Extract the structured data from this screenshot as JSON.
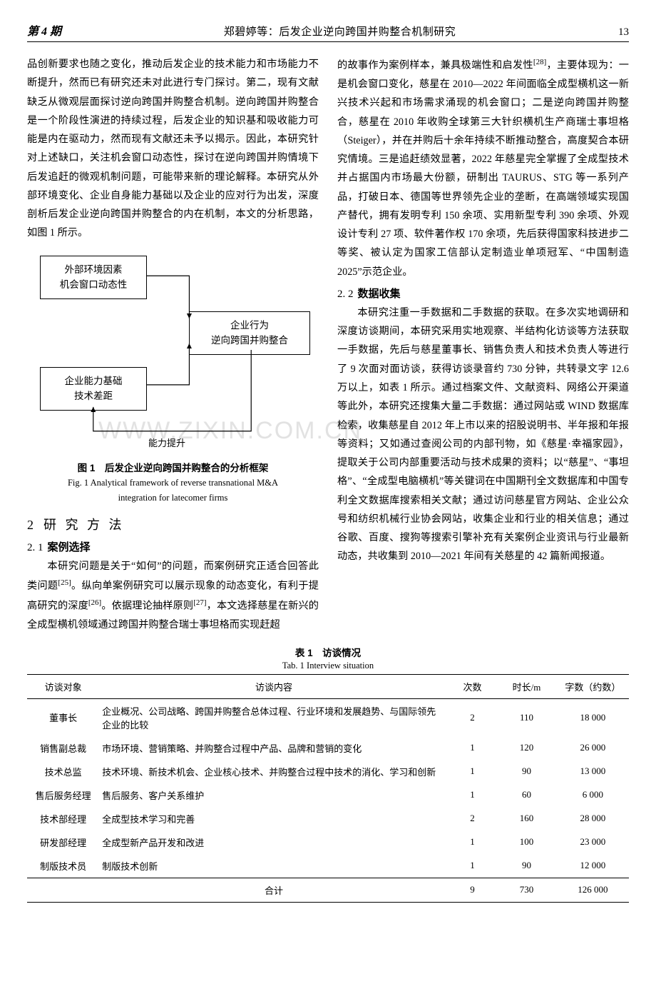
{
  "header": {
    "issue": "第 4 期",
    "center": "郑碧婷等：后发企业逆向跨国并购整合机制研究",
    "page": "13"
  },
  "colLeft": {
    "p1": "品创新要求也随之变化，推动后发企业的技术能力和市场能力不断提升，然而已有研究还未对此进行专门探讨。第二，现有文献缺乏从微观层面探讨逆向跨国并购整合机制。逆向跨国并购整合是一个阶段性演进的持续过程，后发企业的知识基和吸收能力可能是内在驱动力，然而现有文献还未予以揭示。因此，本研究针对上述缺口，关注机会窗口动态性，探讨在逆向跨国并购情境下后发追赶的微观机制问题，可能带来新的理论解释。本研究从外部环境变化、企业自身能力基础以及企业的应对行为出发，深度剖析后发企业逆向跨国并购整合的内在机制，本文的分析思路，如图 1 所示。",
    "fig": {
      "box1_l1": "外部环境因素",
      "box1_l2": "机会窗口动态性",
      "box2_l1": "企业行为",
      "box2_l2": "逆向跨国并购整合",
      "box3_l1": "企业能力基础",
      "box3_l2": "技术差距",
      "label_bottom": "能力提升",
      "caption_cn": "图 1　后发企业逆向跨国并购整合的分析框架",
      "caption_en1": "Fig. 1  Analytical framework of reverse transnational M&A",
      "caption_en2": "integration for latecomer firms"
    },
    "h1_num": "2",
    "h1_txt": "研 究 方 法",
    "h2_num": "2. 1",
    "h2_txt": "案例选择",
    "p2a": "本研究问题是关于“如何”的问题，而案例研究正适合回答此类问题",
    "p2a_ref": "[25]",
    "p2b": "。纵向单案例研究可以展示现象的动态变化，有利于提高研究的深度",
    "p2b_ref": "[26]",
    "p2c": "。依据理论抽样原则",
    "p2c_ref": "[27]",
    "p2d": "，本文选择慈星在新兴的全成型横机领域通过跨国并购整合瑞士事坦格而实现赶超"
  },
  "colRight": {
    "p1a": "的故事作为案例样本，兼具极端性和启发性",
    "p1a_ref": "[28]",
    "p1b": "，主要体现为：一是机会窗口变化，慈星在 2010—2022 年间面临全成型横机这一新兴技术兴起和市场需求涌现的机会窗口；二是逆向跨国并购整合，慈星在 2010 年收购全球第三大针织横机生产商瑞士事坦格（Steiger），并在并购后十余年持续不断推动整合，高度契合本研究情境。三是追赶绩效显著，2022 年慈星完全掌握了全成型技术并占据国内市场最大份额，研制出 TAURUS、STG 等一系列产品，打破日本、德国等世界领先企业的垄断，在高端领域实现国产替代，拥有发明专利 150 余项、实用新型专利 390 余项、外观设计专利 27 项、软件著作权 170 余项，先后获得国家科技进步二等奖、被认定为国家工信部认定制造业单项冠军、“中国制造 2025”示范企业。",
    "h2_num": "2. 2",
    "h2_txt": "数据收集",
    "p2": "本研究注重一手数据和二手数据的获取。在多次实地调研和深度访谈期间，本研究采用实地观察、半结构化访谈等方法获取一手数据，先后与慈星董事长、销售负责人和技术负责人等进行了 9 次面对面访谈，获得访谈录音约 730 分钟，共转录文字 12.6 万以上，如表 1 所示。通过档案文件、文献资料、网络公开渠道等此外，本研究还搜集大量二手数据：通过网站或 WIND 数据库检索，收集慈星自 2012 年上市以来的招股说明书、半年报和年报等资料；又如通过查阅公司的内部刊物，如《慈星·幸福家园》，提取关于公司内部重要活动与技术成果的资料；以“慈星”、“事坦格”、“全成型电脑横机”等关键词在中国期刊全文数据库和中国专利全文数据库搜索相关文献；通过访问慈星官方网站、企业公众号和纺织机械行业协会网站，收集企业和行业的相关信息；通过谷歌、百度、搜狗等搜索引擎补充有关案例企业资讯与行业最新动态，共收集到 2010—2021 年间有关慈星的 42 篇新闻报道。"
  },
  "watermark": "WWW.ZIXIN.COM.CN",
  "table": {
    "caption_cn": "表 1　访谈情况",
    "caption_en": "Tab. 1  Interview situation",
    "columns": [
      "访谈对象",
      "访谈内容",
      "次数",
      "时长/m",
      "字数（约数）"
    ],
    "col_widths": [
      "12%",
      "58%",
      "8%",
      "10%",
      "12%"
    ],
    "rows": [
      [
        "董事长",
        "企业概况、公司战略、跨国并购整合总体过程、行业环境和发展趋势、与国际领先企业的比较",
        "2",
        "110",
        "18 000"
      ],
      [
        "销售副总裁",
        "市场环境、营销策略、并购整合过程中产品、品牌和营销的变化",
        "1",
        "120",
        "26 000"
      ],
      [
        "技术总监",
        "技术环境、新技术机会、企业核心技术、并购整合过程中技术的消化、学习和创新",
        "1",
        "90",
        "13 000"
      ],
      [
        "售后服务经理",
        "售后服务、客户关系维护",
        "1",
        "60",
        "6 000"
      ],
      [
        "技术部经理",
        "全成型技术学习和完善",
        "2",
        "160",
        "28 000"
      ],
      [
        "研发部经理",
        "全成型新产品开发和改进",
        "1",
        "100",
        "23 000"
      ],
      [
        "制版技术员",
        "制版技术创新",
        "1",
        "90",
        "12 000"
      ]
    ],
    "total": [
      "",
      "合计",
      "9",
      "730",
      "126 000"
    ]
  }
}
